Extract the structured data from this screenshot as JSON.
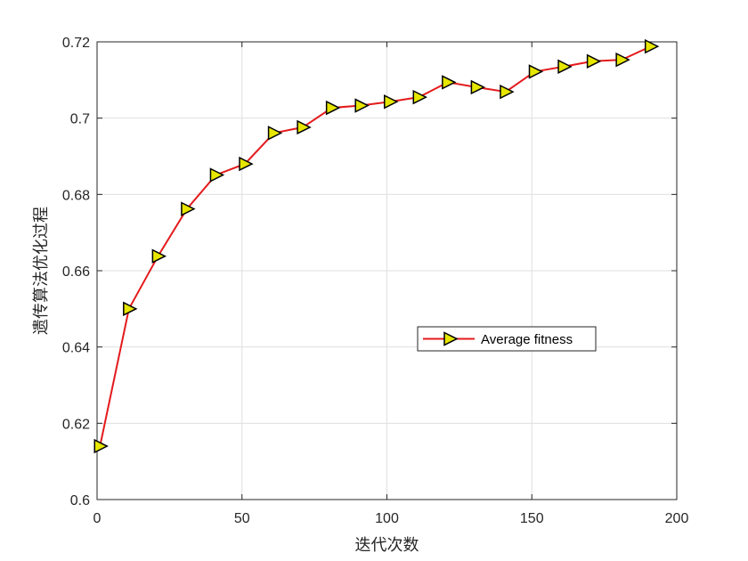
{
  "chart_data": {
    "type": "line",
    "title": "",
    "xlabel": "迭代次数",
    "ylabel": "遗传算法优化过程",
    "xlim": [
      0,
      200
    ],
    "ylim": [
      0.6,
      0.72
    ],
    "xticks": [
      0,
      50,
      100,
      150,
      200
    ],
    "yticks": [
      0.6,
      0.62,
      0.64,
      0.66,
      0.68,
      0.7,
      0.72
    ],
    "xtick_labels": [
      "0",
      "50",
      "100",
      "150",
      "200"
    ],
    "ytick_labels": [
      "0.6",
      "0.62",
      "0.64",
      "0.66",
      "0.68",
      "0.7",
      "0.72"
    ],
    "grid": true,
    "legend_position": "center-right",
    "series": [
      {
        "name": "Average fitness",
        "line_color": "#e41a1c",
        "marker": "triangle-right",
        "marker_fill": "#e6e600",
        "marker_edge": "#000000",
        "x": [
          1,
          11,
          21,
          31,
          41,
          51,
          61,
          71,
          81,
          91,
          101,
          111,
          121,
          131,
          141,
          151,
          161,
          171,
          181,
          191
        ],
        "y": [
          0.614,
          0.65,
          0.6638,
          0.6762,
          0.6851,
          0.688,
          0.6961,
          0.6976,
          0.7027,
          0.7033,
          0.7043,
          0.7055,
          0.7094,
          0.7081,
          0.7069,
          0.7122,
          0.7135,
          0.7149,
          0.7153,
          0.7188
        ]
      }
    ]
  }
}
